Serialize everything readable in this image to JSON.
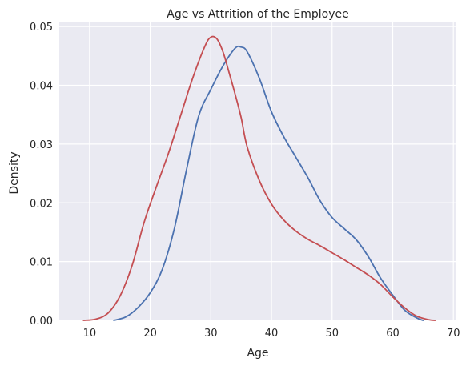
{
  "chart_data": {
    "type": "line",
    "title": "Age vs Attrition of the Employee",
    "xlabel": "Age",
    "ylabel": "Density",
    "xlim": [
      5,
      70.5
    ],
    "ylim": [
      0,
      0.0507
    ],
    "xticks": [
      10,
      20,
      30,
      40,
      50,
      60,
      70
    ],
    "yticks": [
      0.0,
      0.01,
      0.02,
      0.03,
      0.04,
      0.05
    ],
    "ytick_labels": [
      "0.00",
      "0.01",
      "0.02",
      "0.03",
      "0.04",
      "0.05"
    ],
    "grid": true,
    "background_color": "#eaeaf2",
    "series": [
      {
        "color": "#4c72b0",
        "x": [
          14,
          16,
          18,
          20,
          22,
          24,
          26,
          28,
          30,
          32,
          34,
          35,
          36,
          38,
          40,
          42,
          44,
          46,
          48,
          50,
          52,
          54,
          56,
          58,
          60,
          62,
          64,
          65
        ],
        "y": [
          0.0,
          0.0006,
          0.0022,
          0.0047,
          0.0087,
          0.0157,
          0.0257,
          0.0348,
          0.0393,
          0.0433,
          0.0463,
          0.0465,
          0.0457,
          0.0412,
          0.0355,
          0.0313,
          0.0278,
          0.0243,
          0.0204,
          0.0175,
          0.0156,
          0.0137,
          0.0108,
          0.0072,
          0.0043,
          0.0017,
          0.0004,
          0.0
        ]
      },
      {
        "color": "#c44e52",
        "x": [
          9,
          11,
          13,
          15,
          17,
          19,
          21,
          23,
          25,
          27,
          29,
          30,
          31,
          32,
          33,
          34,
          35,
          36,
          38,
          40,
          42,
          44,
          46,
          48,
          50,
          52,
          54,
          56,
          58,
          60,
          62,
          64,
          66,
          67
        ],
        "y": [
          0.0,
          0.0002,
          0.0012,
          0.0041,
          0.0093,
          0.0167,
          0.0227,
          0.0284,
          0.0348,
          0.0412,
          0.0466,
          0.0482,
          0.0479,
          0.0457,
          0.0422,
          0.0385,
          0.0345,
          0.0295,
          0.0238,
          0.0198,
          0.0171,
          0.0152,
          0.0138,
          0.0127,
          0.0115,
          0.0103,
          0.009,
          0.0077,
          0.0061,
          0.004,
          0.0021,
          0.0007,
          0.0001,
          0.0
        ]
      }
    ]
  }
}
